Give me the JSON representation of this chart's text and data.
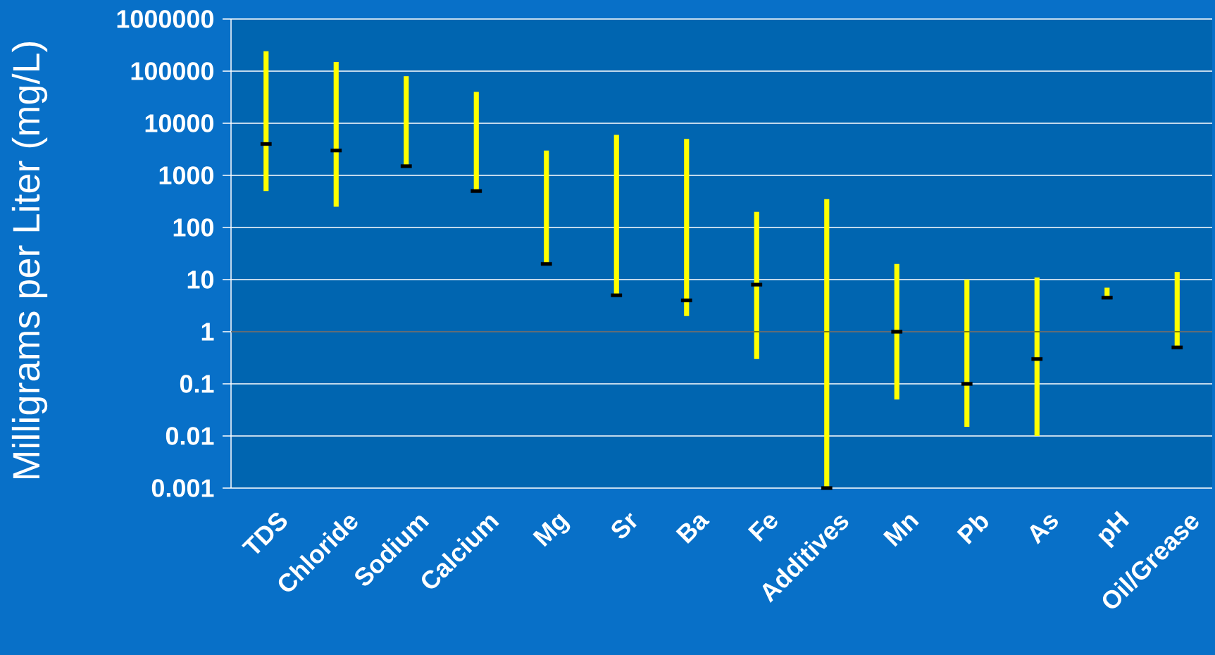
{
  "chart_data": {
    "type": "bar",
    "ylabel": "Milligrams per Liter (mg/L)",
    "categories": [
      "TDS",
      "Chloride",
      "Sodium",
      "Calcium",
      "Mg",
      "Sr",
      "Ba",
      "Fe",
      "Additives",
      "Mn",
      "Pb",
      "As",
      "pH",
      "Oil/Grease"
    ],
    "log": true,
    "grid": "y",
    "ylim": [
      0.001,
      1000000
    ],
    "yticks": [
      0.001,
      0.01,
      0.1,
      1,
      10,
      100,
      1000,
      10000,
      100000,
      1000000
    ],
    "ref_lines": [
      {
        "axis": "y",
        "value": 1,
        "color": "#000000"
      }
    ],
    "series": [
      {
        "color": "#ffff00",
        "base": [
          500,
          250,
          1500,
          500,
          20,
          5,
          2,
          0.3,
          0.001,
          0.05,
          0.015,
          0.01,
          4.4,
          0.5
        ],
        "values": [
          239500,
          149750,
          78500,
          39500,
          2980,
          5995,
          4998,
          199.7,
          349.999,
          19.95,
          9.985,
          10.99,
          2.6,
          13.5
        ]
      },
      {
        "type": "scatter",
        "color": "#000000",
        "marker": "square",
        "x": [
          "TDS",
          "Chloride",
          "Sodium",
          "Calcium",
          "Mg",
          "Sr",
          "Ba",
          "Fe",
          "Additives",
          "Mn",
          "Pb",
          "As",
          "pH",
          "Oil/Grease"
        ],
        "values": [
          4000,
          3000,
          1500,
          500,
          20,
          5,
          4,
          8,
          0.001,
          1,
          0.1,
          0.3,
          4.5,
          0.5
        ]
      }
    ]
  }
}
